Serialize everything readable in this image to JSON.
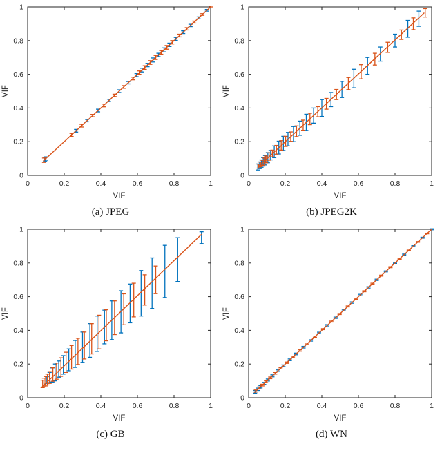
{
  "page": {
    "background": "#ffffff",
    "axis_color": "#262626"
  },
  "chart_data": [
    {
      "type": "scatter",
      "subtype": "errorbar",
      "title": "(a) JPEG",
      "xlabel": "VIF",
      "ylabel": "VIF",
      "xlim": [
        0,
        1
      ],
      "ylim": [
        0,
        1
      ],
      "ticks": [
        0,
        0.2,
        0.4,
        0.6,
        0.8,
        1
      ],
      "tick_labels": [
        "0",
        "0.2",
        "0.4",
        "0.6",
        "0.8",
        "1"
      ],
      "grid": false,
      "legend": "none",
      "axis_color": "#262626",
      "fit_line": {
        "color": "#D95319",
        "x": [
          0.085,
          1.0
        ],
        "y": [
          0.085,
          1.0
        ]
      },
      "series": [
        {
          "name": "series-1-blue",
          "color": "#0072BD",
          "y_equals_x": true,
          "x": [
            0.095,
            0.1,
            0.265,
            0.325,
            0.385,
            0.445,
            0.5,
            0.55,
            0.595,
            0.625,
            0.655,
            0.685,
            0.715,
            0.745,
            0.775,
            0.81,
            0.85,
            0.89,
            0.935,
            0.98
          ],
          "yerr": [
            0.012,
            0.01,
            0.008,
            0.007,
            0.008,
            0.007,
            0.008,
            0.007,
            0.009,
            0.011,
            0.01,
            0.012,
            0.01,
            0.012,
            0.01,
            0.009,
            0.008,
            0.007,
            0.006,
            0.005
          ]
        },
        {
          "name": "series-2-orange",
          "color": "#D95319",
          "y_equals_x": true,
          "x": [
            0.09,
            0.24,
            0.295,
            0.355,
            0.415,
            0.475,
            0.525,
            0.575,
            0.61,
            0.64,
            0.67,
            0.7,
            0.73,
            0.76,
            0.79,
            0.83,
            0.87,
            0.91,
            0.955,
            1.0
          ],
          "yerr": [
            0.013,
            0.009,
            0.008,
            0.007,
            0.008,
            0.007,
            0.008,
            0.008,
            0.01,
            0.011,
            0.011,
            0.012,
            0.011,
            0.011,
            0.01,
            0.008,
            0.007,
            0.006,
            0.005,
            0.004
          ]
        }
      ]
    },
    {
      "type": "scatter",
      "subtype": "errorbar",
      "title": "(b) JPEG2K",
      "xlabel": "VIF",
      "ylabel": "VIF",
      "xlim": [
        0,
        1
      ],
      "ylim": [
        0,
        1
      ],
      "ticks": [
        0,
        0.2,
        0.4,
        0.6,
        0.8,
        1
      ],
      "tick_labels": [
        "0",
        "0.2",
        "0.4",
        "0.6",
        "0.8",
        "1"
      ],
      "grid": false,
      "legend": "none",
      "axis_color": "#262626",
      "fit_line": {
        "color": "#D95319",
        "x": [
          0.05,
          0.96
        ],
        "y": [
          0.048,
          0.965
        ]
      },
      "series": [
        {
          "name": "series-1-blue",
          "color": "#0072BD",
          "y_equals_x": true,
          "x": [
            0.05,
            0.06,
            0.07,
            0.08,
            0.09,
            0.105,
            0.12,
            0.14,
            0.165,
            0.19,
            0.215,
            0.245,
            0.28,
            0.315,
            0.355,
            0.4,
            0.45,
            0.51,
            0.575,
            0.65,
            0.72,
            0.8,
            0.87,
            0.93
          ],
          "yerr": [
            0.018,
            0.02,
            0.022,
            0.025,
            0.028,
            0.03,
            0.028,
            0.035,
            0.038,
            0.042,
            0.04,
            0.045,
            0.042,
            0.048,
            0.045,
            0.05,
            0.042,
            0.048,
            0.055,
            0.05,
            0.042,
            0.038,
            0.05,
            0.045
          ]
        },
        {
          "name": "series-2-orange",
          "color": "#D95319",
          "y_equals_x": true,
          "x": [
            0.055,
            0.065,
            0.075,
            0.085,
            0.095,
            0.112,
            0.13,
            0.152,
            0.178,
            0.202,
            0.23,
            0.262,
            0.298,
            0.335,
            0.378,
            0.425,
            0.48,
            0.545,
            0.615,
            0.69,
            0.76,
            0.835,
            0.9,
            0.965
          ],
          "yerr": [
            0.012,
            0.014,
            0.015,
            0.018,
            0.02,
            0.022,
            0.02,
            0.026,
            0.028,
            0.03,
            0.028,
            0.032,
            0.03,
            0.034,
            0.03,
            0.032,
            0.03,
            0.036,
            0.042,
            0.035,
            0.03,
            0.028,
            0.035,
            0.025
          ]
        }
      ]
    },
    {
      "type": "scatter",
      "subtype": "errorbar",
      "title": "(c) GB",
      "xlabel": "VIF",
      "ylabel": "VIF",
      "xlim": [
        0,
        1
      ],
      "ylim": [
        0,
        1
      ],
      "ticks": [
        0,
        0.2,
        0.4,
        0.6,
        0.8,
        1
      ],
      "tick_labels": [
        "0",
        "0.2",
        "0.4",
        "0.6",
        "0.8",
        "1"
      ],
      "grid": false,
      "legend": "none",
      "axis_color": "#262626",
      "fit_line": {
        "color": "#D95319",
        "x": [
          0.075,
          0.95
        ],
        "y": [
          0.06,
          0.97
        ]
      },
      "series": [
        {
          "name": "series-1-blue",
          "color": "#0072BD",
          "y_equals_x": true,
          "x": [
            0.105,
            0.12,
            0.135,
            0.15,
            0.17,
            0.195,
            0.225,
            0.26,
            0.3,
            0.34,
            0.38,
            0.42,
            0.46,
            0.51,
            0.56,
            0.62,
            0.68,
            0.75,
            0.82,
            0.95
          ],
          "yerr": [
            0.02,
            0.03,
            0.042,
            0.05,
            0.048,
            0.055,
            0.065,
            0.08,
            0.09,
            0.1,
            0.105,
            0.1,
            0.115,
            0.125,
            0.115,
            0.135,
            0.15,
            0.155,
            0.13,
            0.035
          ]
        },
        {
          "name": "series-2-orange",
          "color": "#D95319",
          "y_equals_x": true,
          "x": [
            0.082,
            0.09,
            0.098,
            0.108,
            0.12,
            0.138,
            0.158,
            0.182,
            0.21,
            0.24,
            0.275,
            0.31,
            0.35,
            0.39,
            0.43,
            0.475,
            0.525,
            0.58,
            0.64,
            0.7
          ],
          "yerr": [
            0.022,
            0.026,
            0.028,
            0.032,
            0.035,
            0.04,
            0.048,
            0.055,
            0.06,
            0.07,
            0.078,
            0.08,
            0.09,
            0.1,
            0.092,
            0.1,
            0.092,
            0.1,
            0.09,
            0.082
          ]
        }
      ]
    },
    {
      "type": "scatter",
      "subtype": "errorbar",
      "title": "(d) WN",
      "xlabel": "VIF",
      "ylabel": "VIF",
      "xlim": [
        0,
        1
      ],
      "ylim": [
        0,
        1
      ],
      "ticks": [
        0,
        0.2,
        0.4,
        0.6,
        0.8,
        1
      ],
      "tick_labels": [
        "0",
        "0.2",
        "0.4",
        "0.6",
        "0.8",
        "1"
      ],
      "grid": false,
      "legend": "none",
      "axis_color": "#262626",
      "fit_line": {
        "color": "#D95319",
        "x": [
          0.03,
          1.0
        ],
        "y": [
          0.03,
          1.0
        ]
      },
      "series": [
        {
          "name": "series-1-blue",
          "color": "#0072BD",
          "y_equals_x": true,
          "x": [
            0.035,
            0.05,
            0.065,
            0.085,
            0.105,
            0.13,
            0.16,
            0.19,
            0.225,
            0.26,
            0.3,
            0.34,
            0.385,
            0.43,
            0.475,
            0.52,
            0.565,
            0.61,
            0.655,
            0.7,
            0.75,
            0.8,
            0.85,
            0.9,
            0.95,
            1.0
          ],
          "yerr": [
            0.008,
            0.007,
            0.007,
            0.006,
            0.006,
            0.006,
            0.005,
            0.005,
            0.005,
            0.005,
            0.005,
            0.004,
            0.004,
            0.004,
            0.004,
            0.004,
            0.004,
            0.004,
            0.004,
            0.004,
            0.003,
            0.003,
            0.003,
            0.003,
            0.003,
            0.003
          ]
        },
        {
          "name": "series-2-orange",
          "color": "#D95319",
          "y_equals_x": true,
          "x": [
            0.04,
            0.058,
            0.075,
            0.095,
            0.118,
            0.145,
            0.175,
            0.208,
            0.242,
            0.28,
            0.32,
            0.362,
            0.407,
            0.452,
            0.497,
            0.542,
            0.587,
            0.632,
            0.677,
            0.725,
            0.775,
            0.825,
            0.875,
            0.925,
            0.975
          ],
          "yerr": [
            0.006,
            0.006,
            0.005,
            0.005,
            0.005,
            0.005,
            0.004,
            0.004,
            0.004,
            0.004,
            0.004,
            0.004,
            0.003,
            0.003,
            0.003,
            0.003,
            0.003,
            0.003,
            0.003,
            0.003,
            0.003,
            0.003,
            0.002,
            0.002,
            0.002
          ]
        }
      ]
    }
  ]
}
